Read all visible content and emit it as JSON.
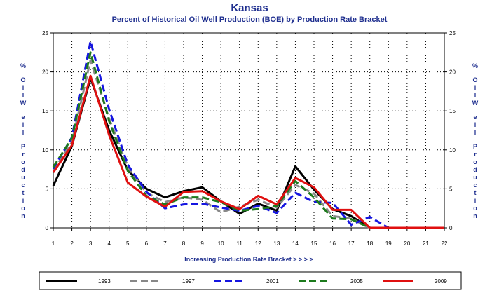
{
  "chart_data": {
    "type": "line",
    "title": "Kansas",
    "subtitle": "Percent of Historical Oil Well Production (BOE) by Production Rate Bracket",
    "xlabel": "Increasing Production Rate Bracket > > > >",
    "ylabel": "% Oil Well Production",
    "ylabel_chars": [
      "%",
      "O",
      "i",
      "l",
      "W",
      "e",
      "l",
      "l",
      "P",
      "r",
      "o",
      "d",
      "u",
      "c",
      "t",
      "i",
      "o",
      "n"
    ],
    "x": [
      1,
      2,
      3,
      4,
      5,
      6,
      7,
      8,
      9,
      10,
      11,
      12,
      13,
      14,
      15,
      16,
      17,
      18,
      19,
      20,
      21,
      22
    ],
    "x_tick_labels": [
      "1",
      "2",
      "3",
      "4",
      "5",
      "6",
      "7",
      "8",
      "9",
      "10",
      "11",
      "12",
      "13",
      "14",
      "15",
      "16",
      "17",
      "18",
      "19",
      "20",
      "21",
      "22"
    ],
    "ylim": [
      0,
      25
    ],
    "y_ticks": [
      0,
      5,
      10,
      15,
      20,
      25
    ],
    "y_tick_labels": [
      "0",
      "5",
      "10",
      "15",
      "20",
      "25"
    ],
    "grid": true,
    "legend_position": "bottom",
    "series": [
      {
        "name": "1993",
        "color": "#000000",
        "dash": "solid",
        "values": [
          5.4,
          10.5,
          19.2,
          12.5,
          7.4,
          5.0,
          3.9,
          4.7,
          5.2,
          3.4,
          1.8,
          3.1,
          2.2,
          7.9,
          4.9,
          2.4,
          1.5,
          0.0,
          0.0,
          0.0,
          0.0,
          0.0
        ]
      },
      {
        "name": "1997",
        "color": "#888888",
        "dash": "dash",
        "values": [
          7.3,
          11.0,
          21.5,
          14.0,
          7.8,
          4.5,
          3.3,
          3.9,
          3.6,
          2.0,
          2.7,
          3.6,
          2.6,
          5.5,
          4.4,
          1.5,
          1.2,
          0.0,
          0.0,
          0.0,
          0.0,
          0.0
        ]
      },
      {
        "name": "2001",
        "color": "#1515e0",
        "dash": "dash",
        "values": [
          7.6,
          11.6,
          23.9,
          15.2,
          8.1,
          4.6,
          2.5,
          3.0,
          3.1,
          2.6,
          2.2,
          2.8,
          1.9,
          4.5,
          3.3,
          3.2,
          0.4,
          1.4,
          0.0,
          0.0,
          0.0,
          0.0
        ]
      },
      {
        "name": "2005",
        "color": "#1d7a1d",
        "dash": "dash",
        "values": [
          7.8,
          11.5,
          22.5,
          13.7,
          7.3,
          4.1,
          3.0,
          3.9,
          3.9,
          3.3,
          2.2,
          2.4,
          2.8,
          6.0,
          3.9,
          1.2,
          1.1,
          0.0,
          0.0,
          0.0,
          0.0,
          0.0
        ]
      },
      {
        "name": "2009",
        "color": "#e01010",
        "dash": "solid",
        "values": [
          7.1,
          10.6,
          19.5,
          11.9,
          5.8,
          4.0,
          2.7,
          4.6,
          4.7,
          3.4,
          2.4,
          4.1,
          3.0,
          6.4,
          5.2,
          2.3,
          2.3,
          0.0,
          0.0,
          0.0,
          0.0,
          0.0
        ]
      }
    ]
  }
}
